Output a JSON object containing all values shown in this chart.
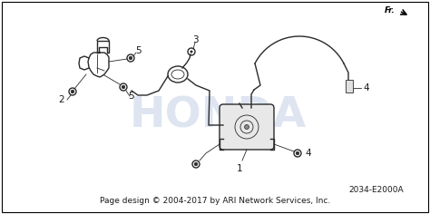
{
  "background_color": "#ffffff",
  "border_color": "#000000",
  "footer_text": "Page design © 2004-2017 by ARI Network Services, Inc.",
  "part_number_text": "2034-E2000A",
  "fr_label": "Fr.",
  "watermark_text": "HONDA",
  "watermark_color": "#c8d4e8",
  "footer_fontsize": 6.5,
  "part_label_fontsize": 7.5,
  "part_number_fontsize": 6.5,
  "line_color": "#2a2a2a",
  "text_color": "#1a1a1a",
  "lw_main": 1.0,
  "lw_thin": 0.6
}
